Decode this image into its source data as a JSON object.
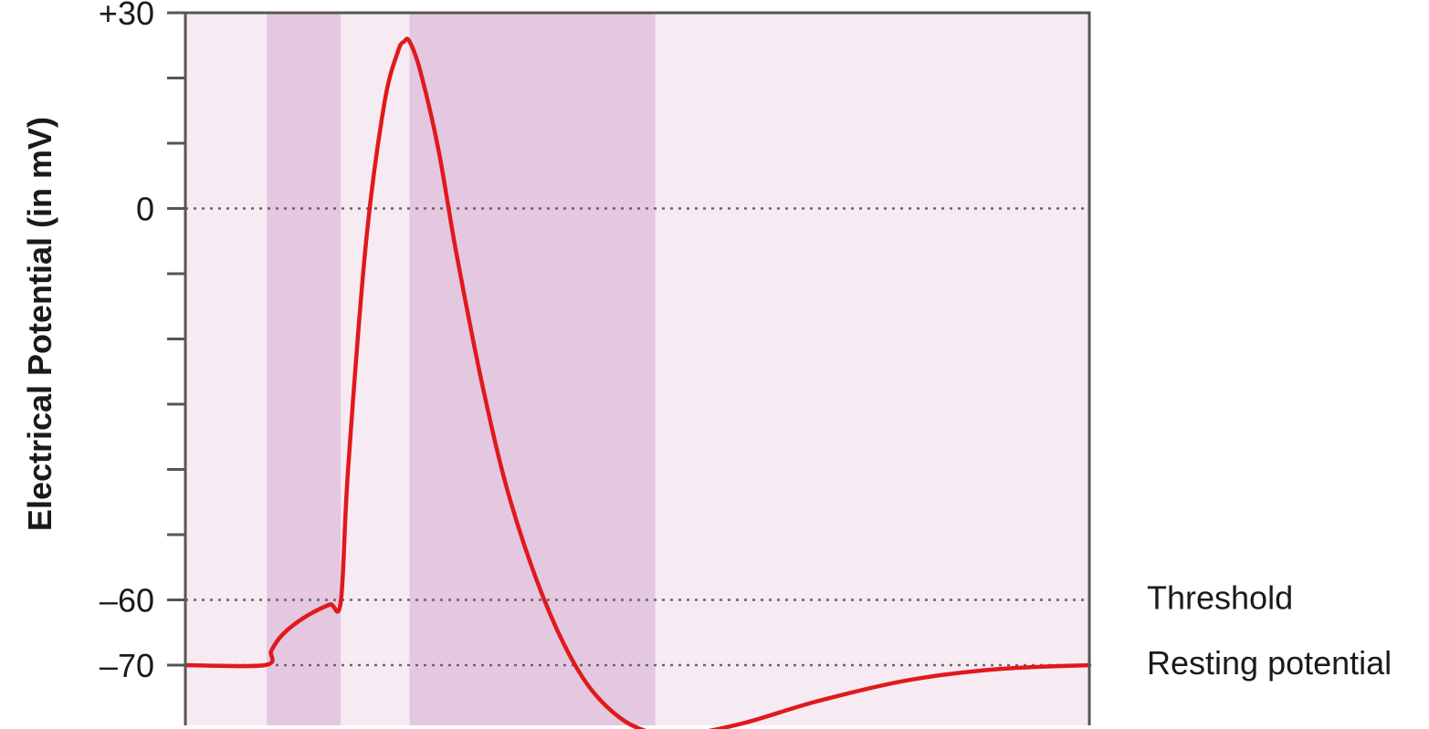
{
  "chart_data": {
    "type": "line",
    "title": "",
    "xlabel": "",
    "ylabel": "Electrical Potential (in mV)",
    "ylim": [
      -80,
      30
    ],
    "xlim": [
      0,
      10
    ],
    "grid": false,
    "y_ticks": [
      {
        "value": 30,
        "label": "+30"
      },
      {
        "value": 20,
        "label": ""
      },
      {
        "value": 10,
        "label": ""
      },
      {
        "value": 0,
        "label": "0"
      },
      {
        "value": -10,
        "label": ""
      },
      {
        "value": -20,
        "label": ""
      },
      {
        "value": -30,
        "label": ""
      },
      {
        "value": -40,
        "label": ""
      },
      {
        "value": -50,
        "label": ""
      },
      {
        "value": -60,
        "label": "–60"
      },
      {
        "value": -70,
        "label": "–70"
      }
    ],
    "reference_lines": [
      {
        "value": 0,
        "label": ""
      },
      {
        "value": -60,
        "label": "Threshold"
      },
      {
        "value": -70,
        "label": "Resting potential"
      }
    ],
    "shaded_bands": [
      {
        "x0": 0.0,
        "x1": 0.9,
        "shade": "light"
      },
      {
        "x0": 0.9,
        "x1": 1.72,
        "shade": "dark"
      },
      {
        "x0": 1.72,
        "x1": 2.48,
        "shade": "light"
      },
      {
        "x0": 2.48,
        "x1": 5.2,
        "shade": "dark"
      },
      {
        "x0": 5.2,
        "x1": 10.0,
        "shade": "light"
      }
    ],
    "series": [
      {
        "name": "",
        "x": [
          0,
          0.88,
          0.95,
          1.05,
          1.2,
          1.4,
          1.6,
          1.72,
          1.8,
          2.0,
          2.2,
          2.35,
          2.42,
          2.48,
          2.6,
          2.8,
          3.0,
          3.3,
          3.6,
          4.0,
          4.4,
          4.8,
          5.2,
          5.6,
          6.2,
          7.0,
          8.0,
          9.0,
          10.0
        ],
        "values": [
          -70,
          -70,
          -67.8,
          -65.7,
          -63.8,
          -62,
          -60.7,
          -60.2,
          -40,
          -5,
          16,
          24,
          25.6,
          25.6,
          21,
          9,
          -7,
          -28,
          -45,
          -61,
          -72,
          -78,
          -80.5,
          -80.5,
          -78.8,
          -75.5,
          -72.3,
          -70.6,
          -70
        ]
      }
    ],
    "colors": {
      "line": "#e0191c",
      "band_light": "#f6eaf3",
      "band_dark": "#e3c8e0",
      "reference": "#666666",
      "frame": "#555555"
    }
  }
}
